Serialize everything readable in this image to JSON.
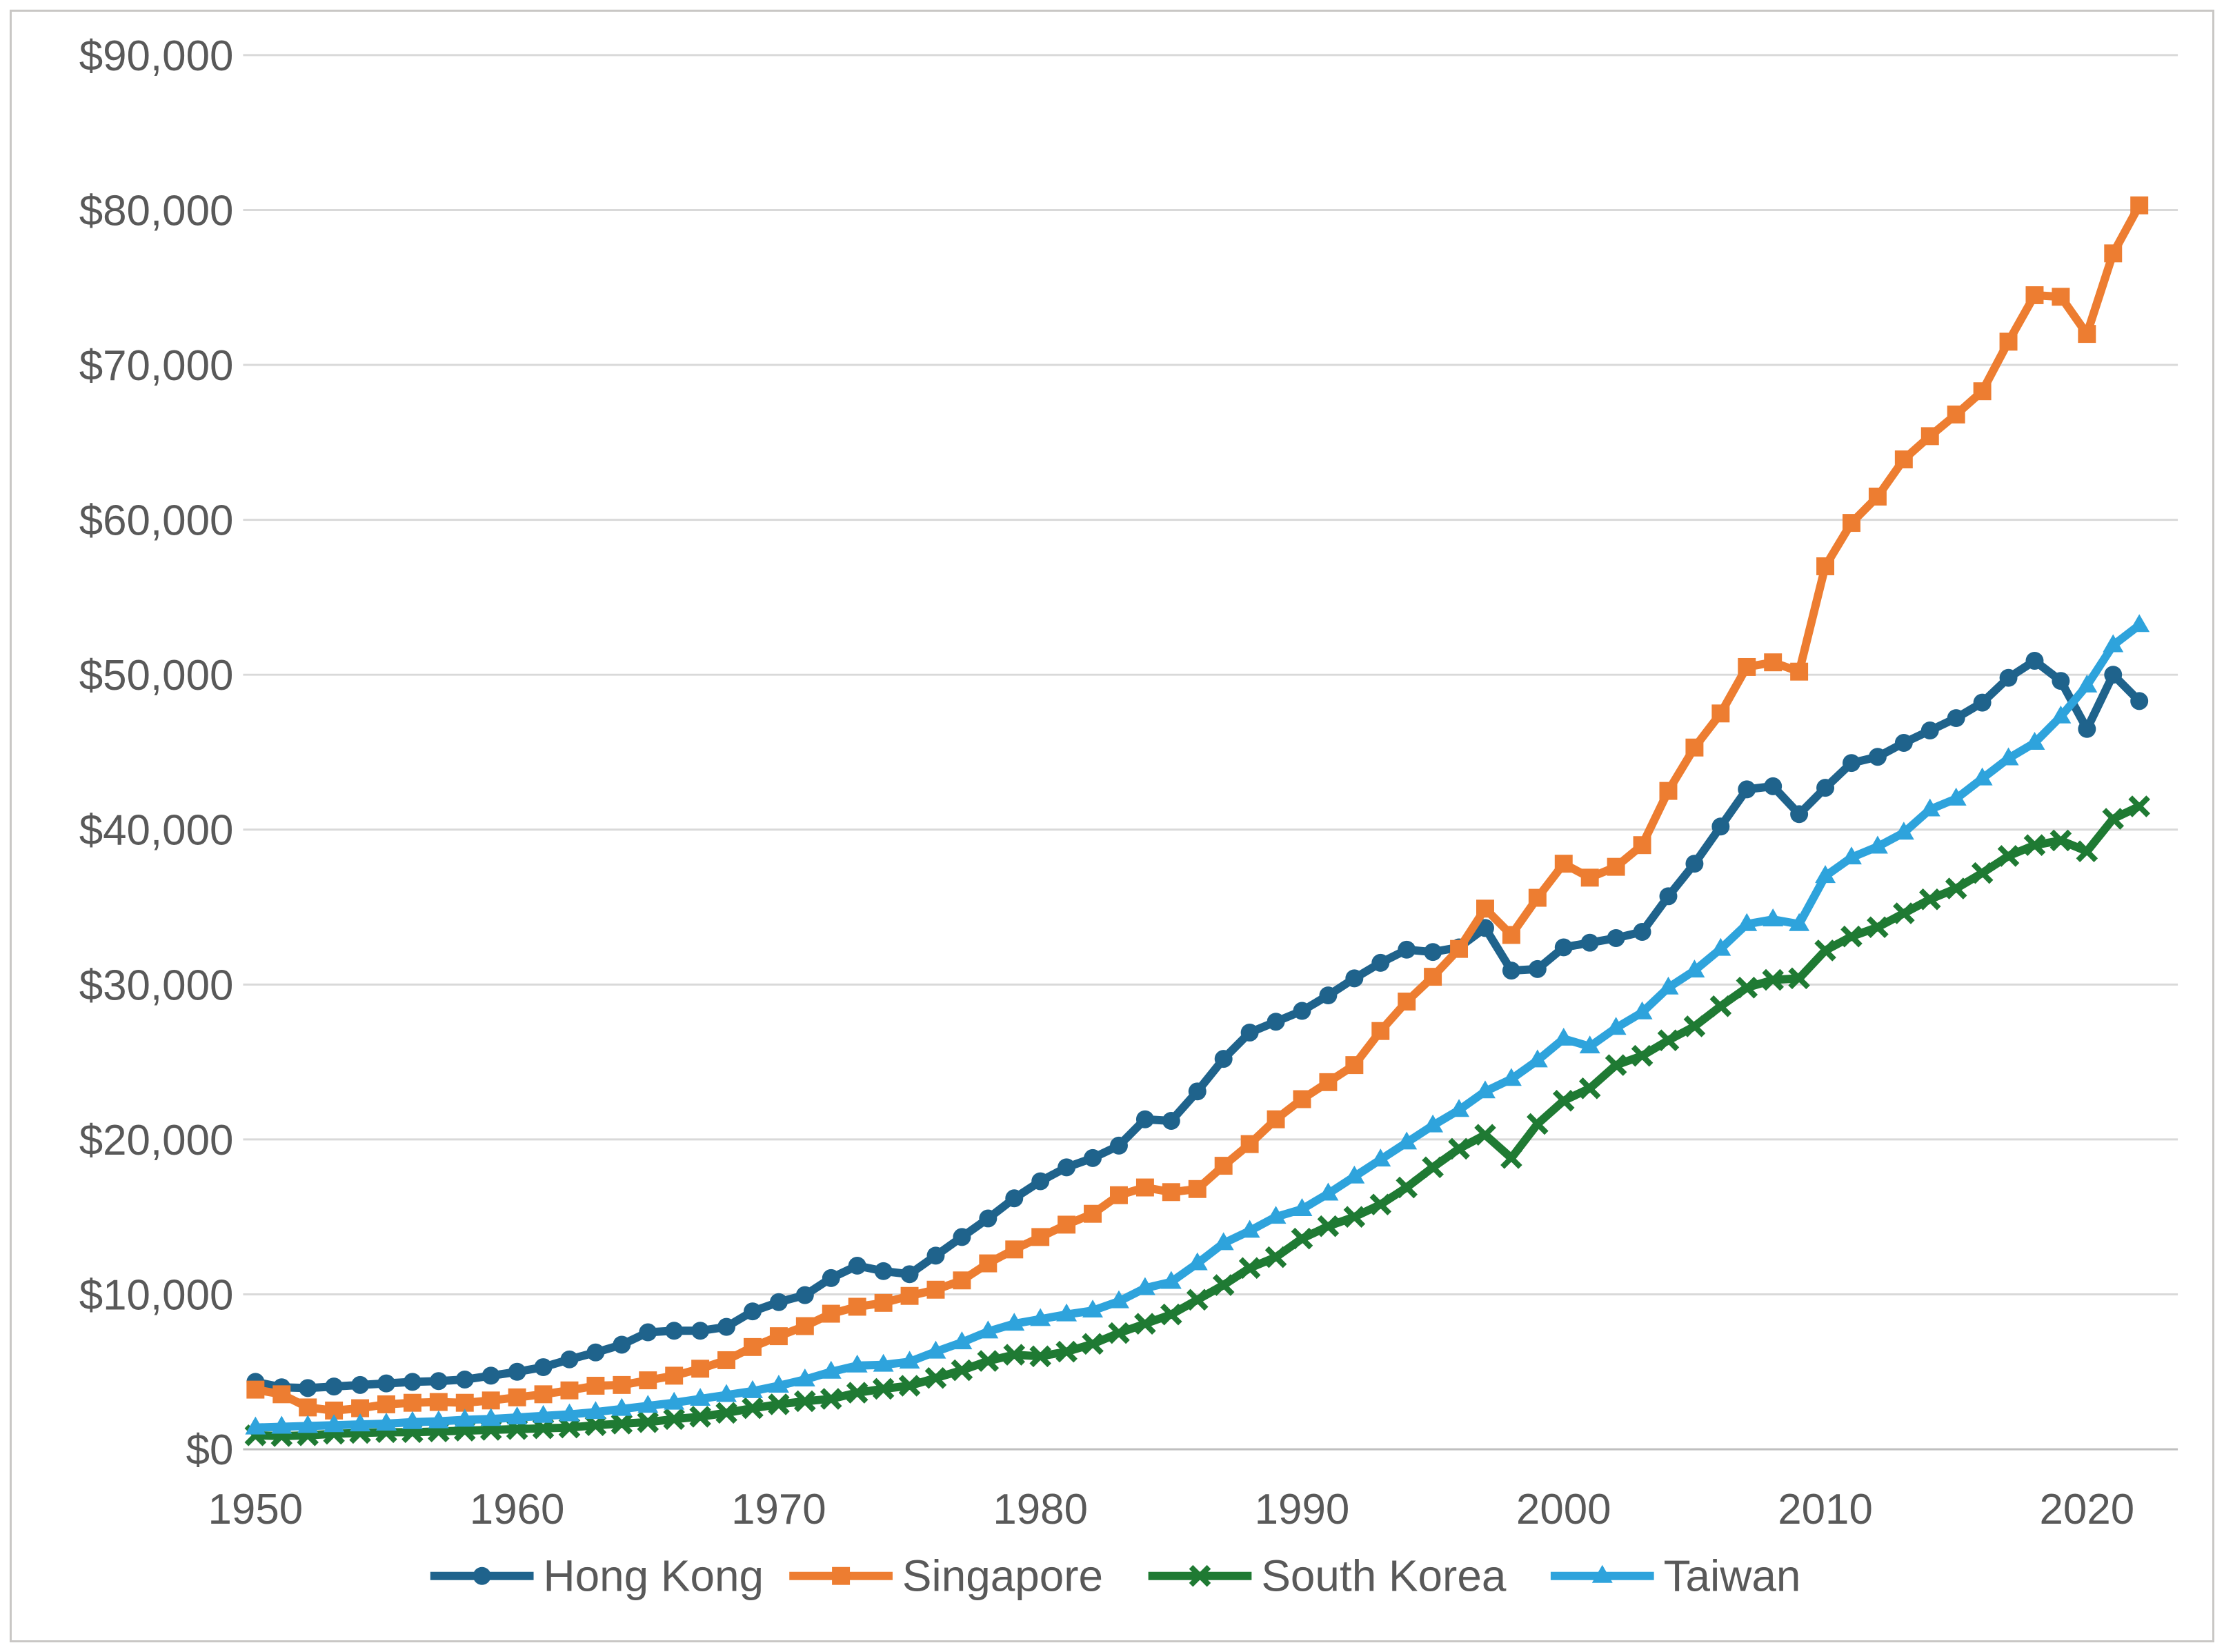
{
  "chart_data": {
    "type": "line",
    "title": "",
    "xlabel": "",
    "ylabel": "",
    "ylim": [
      0,
      90000
    ],
    "grid": "horizontal",
    "legend_position": "bottom-center",
    "x": [
      1950,
      1951,
      1952,
      1953,
      1954,
      1955,
      1956,
      1957,
      1958,
      1959,
      1960,
      1961,
      1962,
      1963,
      1964,
      1965,
      1966,
      1967,
      1968,
      1969,
      1970,
      1971,
      1972,
      1973,
      1974,
      1975,
      1976,
      1977,
      1978,
      1979,
      1980,
      1981,
      1982,
      1983,
      1984,
      1985,
      1986,
      1987,
      1988,
      1989,
      1990,
      1991,
      1992,
      1993,
      1994,
      1995,
      1996,
      1997,
      1998,
      1999,
      2000,
      2001,
      2002,
      2003,
      2004,
      2005,
      2006,
      2007,
      2008,
      2009,
      2010,
      2011,
      2012,
      2013,
      2014,
      2015,
      2016,
      2017,
      2018,
      2019,
      2020,
      2021,
      2022
    ],
    "x_ticks": [
      {
        "label": "1950"
      },
      {
        "label": "1960"
      },
      {
        "label": "1970"
      },
      {
        "label": "1980"
      },
      {
        "label": "1990"
      },
      {
        "label": "2000"
      },
      {
        "label": "2010"
      },
      {
        "label": "2020"
      }
    ],
    "y_ticks": [
      {
        "value": 0,
        "label": "$0"
      },
      {
        "value": 10000,
        "label": "$10,000"
      },
      {
        "value": 20000,
        "label": "$20,000"
      },
      {
        "value": 30000,
        "label": "$30,000"
      },
      {
        "value": 40000,
        "label": "$40,000"
      },
      {
        "value": 50000,
        "label": "$50,000"
      },
      {
        "value": 60000,
        "label": "$60,000"
      },
      {
        "value": 70000,
        "label": "$70,000"
      },
      {
        "value": 80000,
        "label": "$80,000"
      },
      {
        "value": 90000,
        "label": "$90,000"
      }
    ],
    "series": [
      {
        "name": "Hong Kong",
        "color": "#1F638C",
        "marker": "circle",
        "values": [
          4350,
          4000,
          3950,
          4050,
          4150,
          4250,
          4350,
          4400,
          4500,
          4750,
          5000,
          5300,
          5800,
          6250,
          6750,
          7550,
          7650,
          7650,
          7900,
          8900,
          9500,
          9950,
          11050,
          11850,
          11500,
          11300,
          12500,
          13700,
          14900,
          16200,
          17300,
          18200,
          18800,
          19600,
          21300,
          21200,
          23100,
          25200,
          26900,
          27600,
          28300,
          29300,
          30400,
          31400,
          32250,
          32100,
          32400,
          33650,
          30900,
          31000,
          32400,
          32700,
          33000,
          33400,
          35700,
          37800,
          40200,
          42600,
          42800,
          41000,
          42700,
          44300,
          44700,
          45600,
          46400,
          47200,
          48200,
          49800,
          50900,
          49600,
          46500,
          50000,
          48300
        ]
      },
      {
        "name": "Singapore",
        "color": "#ED7D31",
        "marker": "square",
        "values": [
          3850,
          3550,
          2700,
          2500,
          2650,
          2900,
          3000,
          3050,
          3000,
          3150,
          3350,
          3550,
          3800,
          4100,
          4150,
          4450,
          4750,
          5200,
          5750,
          6600,
          7300,
          7950,
          8750,
          9200,
          9450,
          9900,
          10300,
          10900,
          12000,
          12900,
          13700,
          14500,
          15200,
          16400,
          16900,
          16600,
          16800,
          18300,
          19700,
          21300,
          22600,
          23700,
          24800,
          27000,
          28900,
          30500,
          32300,
          34900,
          33200,
          35600,
          37800,
          36900,
          37600,
          39000,
          42500,
          45300,
          47500,
          50500,
          50800,
          50200,
          57000,
          59800,
          61500,
          63900,
          65400,
          66800,
          68300,
          71500,
          74500,
          74400,
          72000,
          77200,
          80300
        ]
      },
      {
        "name": "South Korea",
        "color": "#1F7A33",
        "marker": "x",
        "values": [
          900,
          850,
          900,
          1000,
          1050,
          1100,
          1100,
          1150,
          1200,
          1250,
          1300,
          1350,
          1400,
          1550,
          1650,
          1750,
          1950,
          2100,
          2350,
          2650,
          2900,
          3100,
          3250,
          3650,
          3900,
          4100,
          4600,
          5100,
          5700,
          6100,
          6000,
          6300,
          6800,
          7500,
          8100,
          8700,
          9650,
          10600,
          11700,
          12400,
          13600,
          14400,
          15000,
          15800,
          16900,
          18200,
          19400,
          20300,
          18800,
          21000,
          22500,
          23300,
          24800,
          25400,
          26400,
          27300,
          28600,
          29800,
          30300,
          30400,
          32200,
          33100,
          33700,
          34600,
          35500,
          36200,
          37200,
          38300,
          39000,
          39300,
          38600,
          40700,
          41500
        ]
      },
      {
        "name": "Taiwan",
        "color": "#2EA3DC",
        "marker": "triangle",
        "values": [
          1400,
          1450,
          1500,
          1550,
          1600,
          1650,
          1750,
          1800,
          1900,
          1950,
          2050,
          2150,
          2250,
          2400,
          2600,
          2800,
          3000,
          3250,
          3500,
          3750,
          4100,
          4500,
          5000,
          5400,
          5450,
          5650,
          6300,
          6900,
          7600,
          8100,
          8400,
          8700,
          8950,
          9550,
          10400,
          10800,
          12000,
          13300,
          14100,
          15000,
          15500,
          16500,
          17600,
          18700,
          19800,
          20900,
          21900,
          23100,
          23900,
          25100,
          26500,
          26000,
          27200,
          28200,
          29800,
          30900,
          32300,
          33900,
          34200,
          33900,
          37000,
          38200,
          38900,
          39800,
          41300,
          42000,
          43300,
          44600,
          45600,
          47300,
          49300,
          51900,
          53200
        ]
      }
    ]
  },
  "styles": {
    "text_color": "#595959",
    "gridline_color": "#d9d9d9",
    "axis_line_color": "#bfbfbf",
    "background": "#ffffff",
    "frame_border_color": "#c9c7c5"
  }
}
